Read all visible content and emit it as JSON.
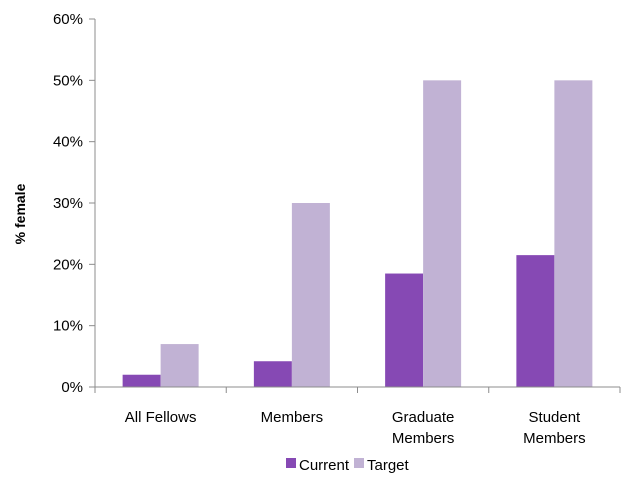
{
  "chart_data": {
    "type": "bar",
    "title": "",
    "xlabel": "",
    "ylabel": "% female",
    "ylim": [
      0,
      60
    ],
    "yticks": [
      0,
      10,
      20,
      30,
      40,
      50,
      60
    ],
    "ytick_labels": [
      "0%",
      "10%",
      "20%",
      "30%",
      "40%",
      "50%",
      "60%"
    ],
    "grid": false,
    "legend_position": "bottom",
    "categories": [
      [
        "All Fellows"
      ],
      [
        "Members"
      ],
      [
        "Graduate",
        "Members"
      ],
      [
        "Student",
        "Members"
      ]
    ],
    "series": [
      {
        "name": "Current",
        "color": "#8649b4",
        "values": [
          2,
          4.2,
          18.5,
          21.5
        ]
      },
      {
        "name": "Target",
        "color": "#c1b2d4",
        "values": [
          7,
          30,
          50,
          50
        ]
      }
    ]
  }
}
